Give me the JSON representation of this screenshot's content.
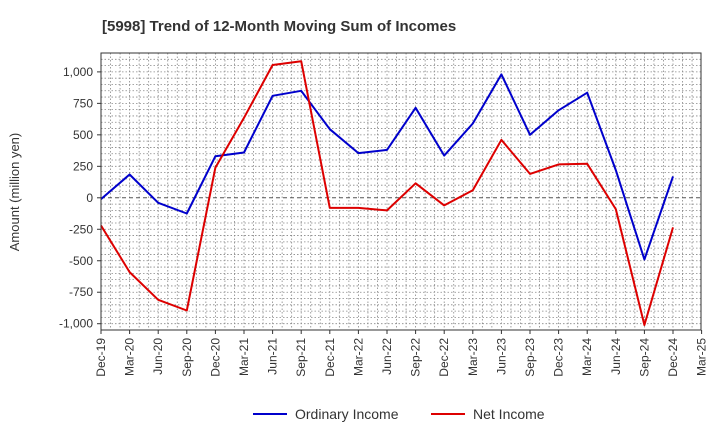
{
  "chart_data": {
    "type": "line",
    "title": "[5998]  Trend of 12-Month Moving Sum of Incomes",
    "xlabel": "",
    "ylabel": "Amount (million yen)",
    "ylim": [
      -1050,
      1150
    ],
    "yticks": [
      1000,
      750,
      500,
      250,
      0,
      -250,
      -500,
      -750,
      -1000
    ],
    "ytick_labels": [
      "1,000",
      "750",
      "500",
      "250",
      "0",
      "-250",
      "-500",
      "-750",
      "-1,000"
    ],
    "categories": [
      "Dec-19",
      "Mar-20",
      "Jun-20",
      "Sep-20",
      "Dec-20",
      "Mar-21",
      "Jun-21",
      "Sep-21",
      "Dec-21",
      "Mar-22",
      "Jun-22",
      "Sep-22",
      "Dec-22",
      "Mar-23",
      "Jun-23",
      "Sep-23",
      "Dec-23",
      "Mar-24",
      "Jun-24",
      "Sep-24",
      "Dec-24",
      "Mar-25"
    ],
    "grid": true,
    "legend_position": "bottom",
    "series": [
      {
        "name": "Ordinary Income",
        "color": "#0000cc",
        "values": [
          -10,
          185,
          -40,
          -125,
          330,
          360,
          810,
          850,
          545,
          355,
          380,
          715,
          335,
          590,
          980,
          500,
          695,
          835,
          220,
          -490,
          170,
          null
        ]
      },
      {
        "name": "Net Income",
        "color": "#dd0000",
        "values": [
          -220,
          -590,
          -810,
          -895,
          240,
          635,
          1055,
          1085,
          -80,
          -80,
          -100,
          115,
          -60,
          60,
          460,
          190,
          265,
          270,
          -90,
          -1010,
          -235,
          null
        ]
      }
    ]
  }
}
